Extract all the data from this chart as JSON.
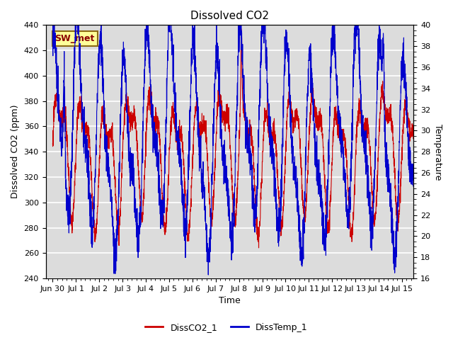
{
  "title": "Dissolved CO2",
  "xlabel": "Time",
  "ylabel_left": "Dissolved CO2 (ppm)",
  "ylabel_right": "Temperature",
  "ylim_left": [
    240,
    440
  ],
  "ylim_right": [
    16,
    40
  ],
  "yticks_left": [
    240,
    260,
    280,
    300,
    320,
    340,
    360,
    380,
    400,
    420,
    440
  ],
  "yticks_right": [
    16,
    18,
    20,
    22,
    24,
    26,
    28,
    30,
    32,
    34,
    36,
    38,
    40
  ],
  "xtick_labels": [
    "Jun 30",
    "Jul 1",
    "Jul 2",
    "Jul 3",
    "Jul 4",
    "Jul 5",
    "Jul 6",
    "Jul 7",
    "Jul 8",
    "Jul 9",
    "Jul 10",
    "Jul 11",
    "Jul 12",
    "Jul 13",
    "Jul 14",
    "Jul 15"
  ],
  "annotation_text": "SW_met",
  "annotation_color": "#8B0000",
  "annotation_bg": "#FFFF99",
  "annotation_border": "#8B6914",
  "line_co2_color": "#CC0000",
  "line_temp_color": "#0000CC",
  "legend_co2": "DissCO2_1",
  "legend_temp": "DissTemp_1",
  "plot_bg": "#DCDCDC",
  "grid_color": "white",
  "title_fontsize": 11,
  "axis_label_fontsize": 9,
  "tick_fontsize": 8,
  "legend_fontsize": 9
}
